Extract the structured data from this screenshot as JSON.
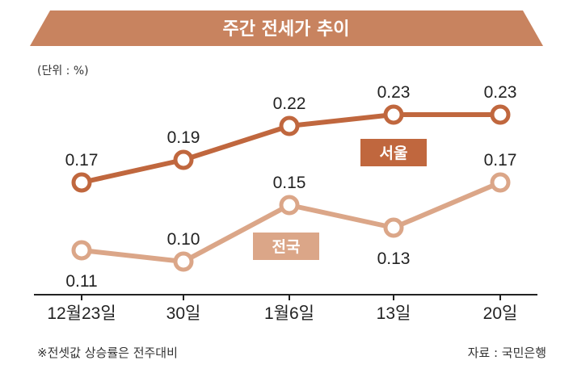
{
  "colors": {
    "title_bg": "#c8835f",
    "seoul": "#c0673e",
    "nation": "#dba688",
    "axis": "#222222"
  },
  "chart_data": {
    "type": "line",
    "title": "주간 전세가 추이",
    "unit_label": "(단위 : %)",
    "categories": [
      "12월23일",
      "30일",
      "1월6일",
      "13일",
      "20일"
    ],
    "ylim": [
      0.08,
      0.25
    ],
    "grid": false,
    "series": [
      {
        "name": "서울",
        "values": [
          0.17,
          0.19,
          0.22,
          0.23,
          0.23
        ],
        "labels": [
          "0.17",
          "0.19",
          "0.22",
          "0.23",
          "0.23"
        ]
      },
      {
        "name": "전국",
        "values": [
          0.11,
          0.1,
          0.15,
          0.13,
          0.17
        ],
        "labels": [
          "0.11",
          "0.10",
          "0.15",
          "0.13",
          "0.17"
        ]
      }
    ]
  },
  "footer": {
    "note": "※전셋값 상승률은 전주대비",
    "source": "자료 : 국민은행"
  }
}
